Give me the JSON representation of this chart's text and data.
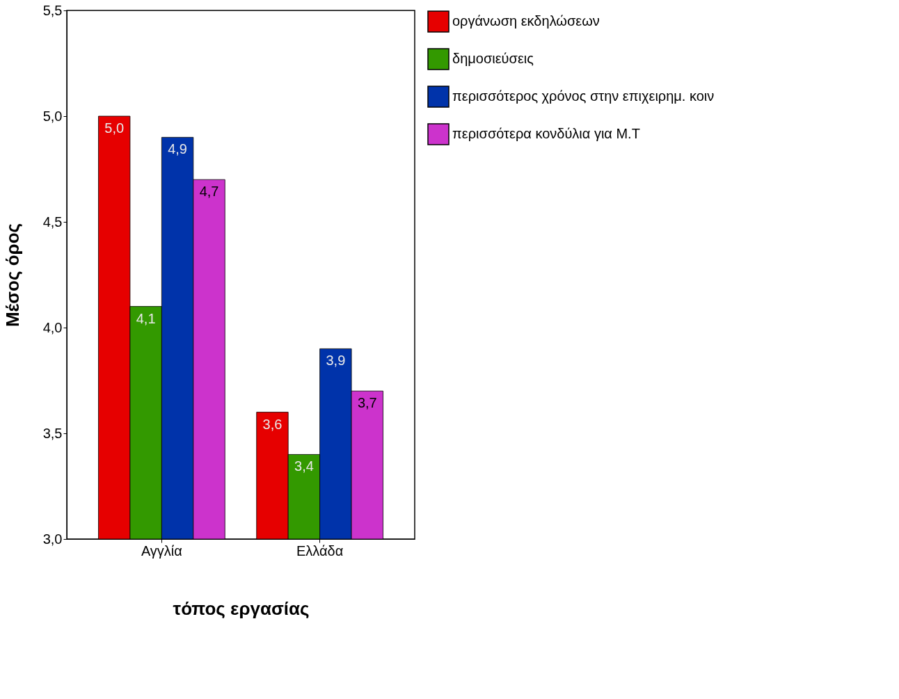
{
  "chart_data": {
    "type": "bar",
    "xlabel": "τόπος εργασίας",
    "ylabel": "Μέσος όρος",
    "categories": [
      "Αγγλία",
      "Ελλάδα"
    ],
    "series": [
      {
        "name": "οργάνωση εκδηλώσεων",
        "color": "#e60000",
        "values": [
          5.0,
          3.6
        ],
        "value_labels": [
          "5,0",
          "3,6"
        ]
      },
      {
        "name": "δημοσιεύσεις",
        "color": "#339900",
        "values": [
          4.1,
          3.4
        ],
        "value_labels": [
          "4,1",
          "3,4"
        ]
      },
      {
        "name": "περισσότερος χρόνος στην επιχειρημ. κοιν",
        "color": "#0033aa",
        "values": [
          4.9,
          3.9
        ],
        "value_labels": [
          "4,9",
          "3,9"
        ]
      },
      {
        "name": "περισσότερα κονδύλια για Μ.Τ",
        "color": "#cc33cc",
        "values": [
          4.7,
          3.7
        ],
        "value_labels": [
          "4,7",
          "3,7"
        ]
      }
    ],
    "ylim": [
      3.0,
      5.5
    ],
    "yticks": [
      {
        "value": 3.0,
        "label": "3,0"
      },
      {
        "value": 3.5,
        "label": "3,5"
      },
      {
        "value": 4.0,
        "label": "4,0"
      },
      {
        "value": 4.5,
        "label": "4,5"
      },
      {
        "value": 5.0,
        "label": "5,0"
      },
      {
        "value": 5.5,
        "label": "5,5"
      }
    ],
    "grid": false,
    "legend": "right"
  }
}
